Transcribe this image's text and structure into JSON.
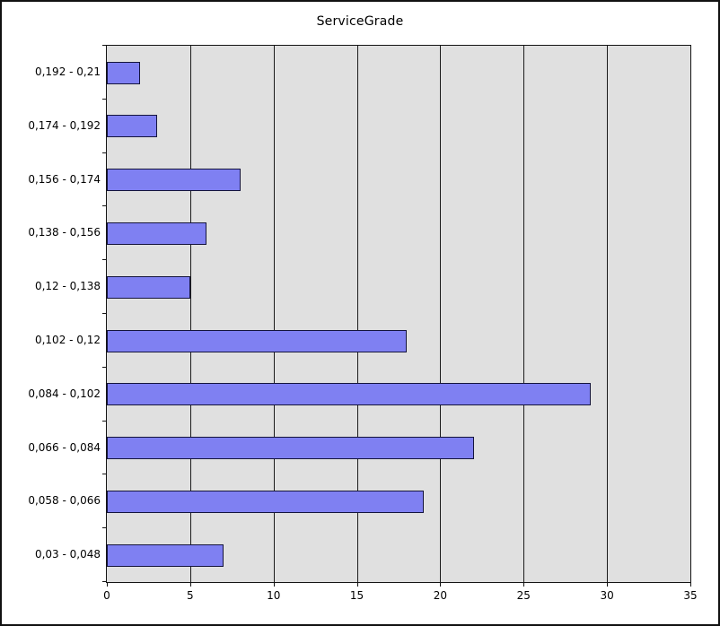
{
  "chart_data": {
    "type": "bar",
    "orientation": "horizontal",
    "title": "ServiceGrade",
    "categories": [
      "0,192 - 0,21",
      "0,174 - 0,192",
      "0,156 - 0,174",
      "0,138 - 0,156",
      "0,12 - 0,138",
      "0,102 - 0,12",
      "0,084 - 0,102",
      "0,066 - 0,084",
      "0,058 - 0,066",
      "0,03 - 0,048"
    ],
    "values": [
      2,
      3,
      8,
      6,
      5,
      18,
      29,
      22,
      19,
      7
    ],
    "xlabel": "",
    "ylabel": "",
    "xlim": [
      0,
      35
    ],
    "x_ticks": [
      0,
      5,
      10,
      15,
      20,
      25,
      30,
      35
    ],
    "grid": true,
    "legend": "none",
    "colors": {
      "bar_fill": "#7f80f2",
      "bar_border": "#14143c",
      "plot_background": "#e0e0e0",
      "grid_line": "#1c1c1c",
      "frame_border": "#111111",
      "text": "#000000"
    }
  }
}
